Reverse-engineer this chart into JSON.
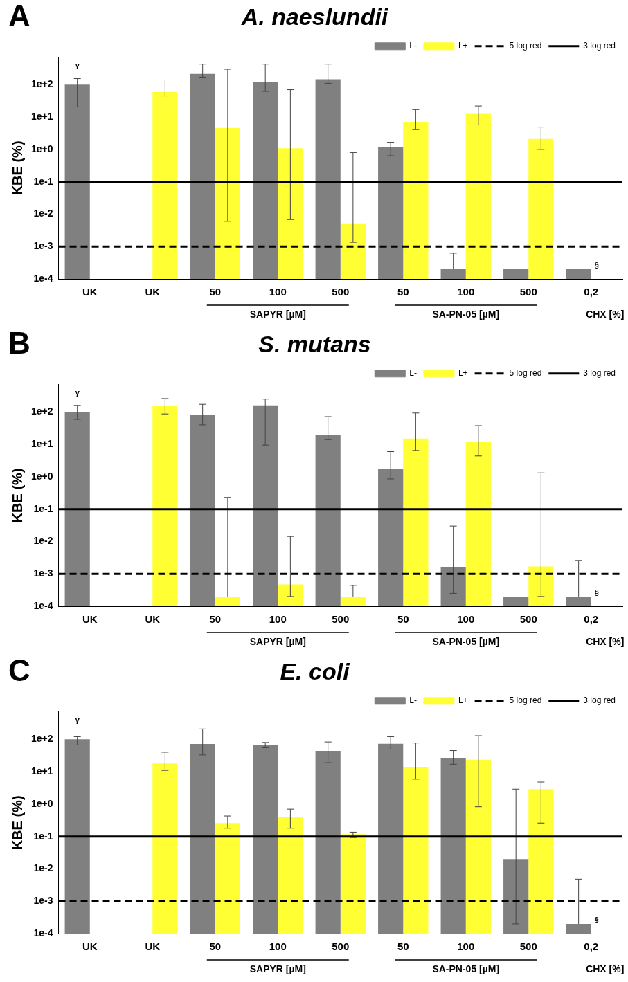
{
  "chart_data": [
    {
      "type": "bar",
      "title": "A. naeslundii",
      "ylabel": "KBE (%)",
      "log": true,
      "legend": "top right",
      "categories": [
        "UK",
        "UK",
        "50",
        "100",
        "500",
        "50",
        "100",
        "500",
        "0,2"
      ],
      "ylim": [
        0.0001,
        700
      ],
      "yticks": [
        {
          "value": 0.0001,
          "label": "1e-4"
        },
        {
          "value": 0.001,
          "label": "1e-3"
        },
        {
          "value": 0.01,
          "label": "1e-2"
        },
        {
          "value": 0.1,
          "label": "1e-1"
        },
        {
          "value": 1,
          "label": "1e+0"
        },
        {
          "value": 10,
          "label": "1e+1"
        },
        {
          "value": 100,
          "label": "1e+2"
        }
      ],
      "series": [
        {
          "name": "L-",
          "color": "#808080",
          "values": [
            100,
            null,
            215,
            124,
            147,
            1.17,
            0.0002,
            0.0002,
            0.0002
          ],
          "errors": [
            [
              20.6,
              154
            ],
            null,
            [
              170,
              430
            ],
            [
              62,
              430
            ],
            [
              110,
              430
            ],
            [
              0.64,
              1.66
            ],
            [
              0.0002,
              0.00062
            ],
            null,
            null
          ]
        },
        {
          "name": "L+",
          "color": "#ffff33",
          "values": [
            null,
            59,
            4.6,
            1.09,
            0.0052,
            7,
            12.5,
            2.1,
            null
          ],
          "errors": [
            null,
            [
              45,
              140
            ],
            [
              0.006,
              300
            ],
            [
              0.0068,
              70
            ],
            [
              0.00135,
              0.8
            ],
            [
              4.1,
              17
            ],
            [
              5.7,
              22
            ],
            [
              1,
              4.9
            ],
            null
          ]
        }
      ],
      "ref_lines": [
        {
          "axis": "y",
          "value": 0.001,
          "label": "5 log red",
          "color": "#000000",
          "line_style": "dashed"
        },
        {
          "axis": "y",
          "value": 0.1,
          "label": "3 log red",
          "color": "#000000",
          "line_style": "solid"
        }
      ],
      "annotations": [
        "A",
        "SAPYR [µM]",
        "SA-PN-05 [µM]",
        "CHX [%]",
        "γ",
        {
          "text": "§",
          "x": "0,2",
          "y": 0.0002
        }
      ]
    },
    {
      "type": "bar",
      "title": "S. mutans",
      "ylabel": "KBE (%)",
      "log": true,
      "legend": "top right",
      "categories": [
        "UK",
        "UK",
        "50",
        "100",
        "500",
        "50",
        "100",
        "500",
        "0,2"
      ],
      "ylim": [
        0.0001,
        700
      ],
      "yticks": [
        {
          "value": 0.0001,
          "label": "1e-4"
        },
        {
          "value": 0.001,
          "label": "1e-3"
        },
        {
          "value": 0.01,
          "label": "1e-2"
        },
        {
          "value": 0.1,
          "label": "1e-1"
        },
        {
          "value": 1,
          "label": "1e+0"
        },
        {
          "value": 10,
          "label": "1e+1"
        },
        {
          "value": 100,
          "label": "1e+2"
        }
      ],
      "series": [
        {
          "name": "L-",
          "color": "#808080",
          "values": [
            100,
            null,
            81,
            160,
            20,
            1.8,
            0.0016,
            0.0002,
            0.0002
          ],
          "errors": [
            [
              59,
              160
            ],
            null,
            [
              40,
              173
            ],
            [
              9.5,
              250
            ],
            [
              14,
              72
            ],
            [
              0.86,
              6
            ],
            [
              0.00025,
              0.03
            ],
            null,
            [
              0.0002,
              0.0026
            ]
          ]
        },
        {
          "name": "L+",
          "color": "#ffff33",
          "values": [
            null,
            150,
            0.0002,
            0.00047,
            0.0002,
            15,
            12,
            0.0017,
            null
          ],
          "errors": [
            null,
            [
              87,
              260
            ],
            [
              0.0002,
              0.23
            ],
            [
              0.0002,
              0.0143
            ],
            [
              0.0002,
              0.00044
            ],
            [
              6.5,
              93
            ],
            [
              4.4,
              38
            ],
            [
              0.0002,
              1.32
            ],
            null
          ]
        }
      ],
      "ref_lines": [
        {
          "axis": "y",
          "value": 0.001,
          "label": "5 log red",
          "color": "#000000",
          "line_style": "dashed"
        },
        {
          "axis": "y",
          "value": 0.1,
          "label": "3 log red",
          "color": "#000000",
          "line_style": "solid"
        }
      ],
      "annotations": [
        "B",
        "SAPYR [µM]",
        "SA-PN-05 [µM]",
        "CHX [%]",
        "γ",
        {
          "text": "§",
          "x": "0,2",
          "y": 0.0002
        }
      ]
    },
    {
      "type": "bar",
      "title": "E. coli",
      "ylabel": "KBE (%)",
      "log": true,
      "legend": "top right",
      "categories": [
        "UK",
        "UK",
        "50",
        "100",
        "500",
        "50",
        "100",
        "500",
        "0,2"
      ],
      "ylim": [
        0.0001,
        700
      ],
      "yticks": [
        {
          "value": 0.0001,
          "label": "1e-4"
        },
        {
          "value": 0.001,
          "label": "1e-3"
        },
        {
          "value": 0.01,
          "label": "1e-2"
        },
        {
          "value": 0.1,
          "label": "1e-1"
        },
        {
          "value": 1,
          "label": "1e+0"
        },
        {
          "value": 10,
          "label": "1e+1"
        },
        {
          "value": 100,
          "label": "1e+2"
        }
      ],
      "series": [
        {
          "name": "L-",
          "color": "#808080",
          "values": [
            100,
            null,
            72,
            68,
            44,
            73,
            26,
            0.02,
            0.0002
          ],
          "errors": [
            [
              67,
              121
            ],
            null,
            [
              33,
              209
            ],
            [
              55,
              80
            ],
            [
              19,
              83
            ],
            [
              50,
              121
            ],
            [
              17,
              45
            ],
            [
              0.0002,
              2.9
            ],
            [
              0.0002,
              0.0048
            ]
          ]
        },
        {
          "name": "L+",
          "color": "#ffff33",
          "values": [
            null,
            18,
            0.26,
            0.41,
            0.118,
            13.5,
            23.5,
            2.9,
            null
          ],
          "errors": [
            null,
            [
              11,
              40
            ],
            [
              0.18,
              0.43
            ],
            [
              0.18,
              0.7
            ],
            [
              0.093,
              0.136
            ],
            [
              5.9,
              77
            ],
            [
              0.83,
              130
            ],
            [
              0.26,
              4.8
            ],
            null
          ]
        }
      ],
      "ref_lines": [
        {
          "axis": "y",
          "value": 0.001,
          "label": "5 log red",
          "color": "#000000",
          "line_style": "dashed"
        },
        {
          "axis": "y",
          "value": 0.1,
          "label": "3 log red",
          "color": "#000000",
          "line_style": "solid"
        }
      ],
      "annotations": [
        "C",
        "SAPYR [µM]",
        "SA-PN-05 [µM]",
        "CHX [%]",
        "γ",
        {
          "text": "§",
          "x": "0,2",
          "y": 0.0002
        }
      ]
    }
  ]
}
